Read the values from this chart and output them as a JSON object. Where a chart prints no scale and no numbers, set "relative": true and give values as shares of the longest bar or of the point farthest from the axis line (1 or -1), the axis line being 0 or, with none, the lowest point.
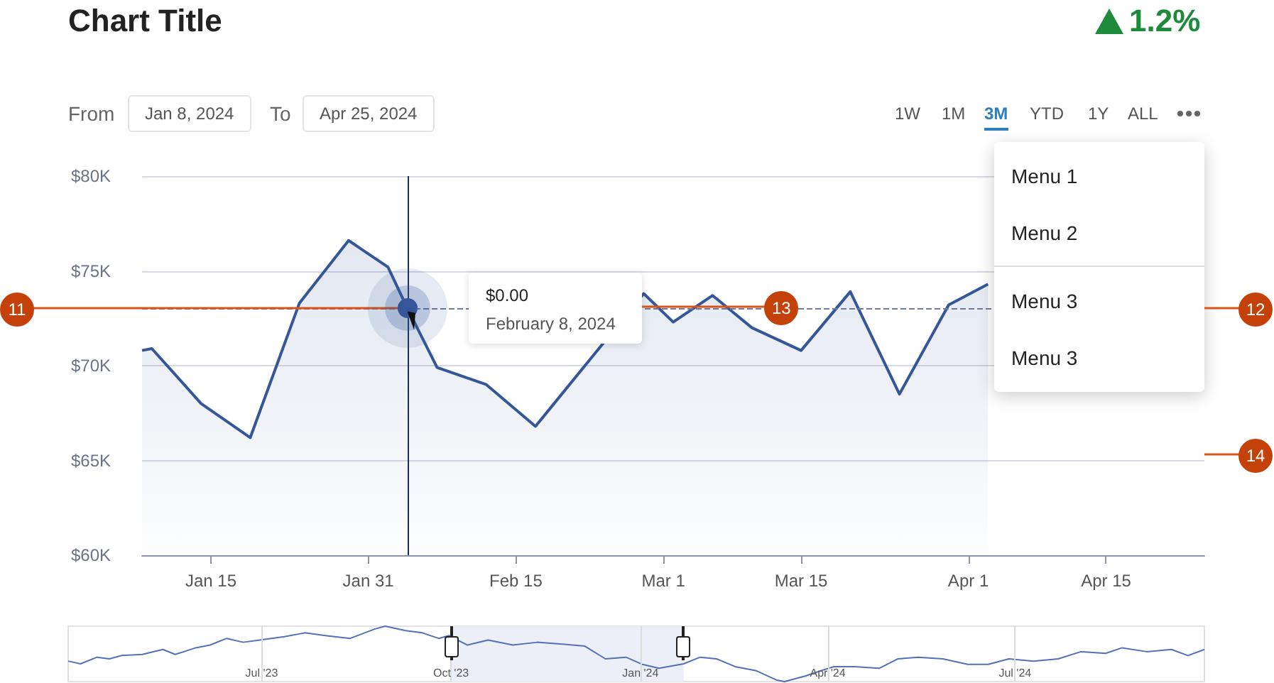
{
  "chart_data": [
    {
      "type": "area",
      "title": "Chart Title",
      "color": "#35579a",
      "marker": "none",
      "grid": "y",
      "x": [
        "2024-01-08",
        "2024-01-09",
        "2024-01-14",
        "2024-01-19",
        "2024-01-24",
        "2024-01-29",
        "2024-02-02",
        "2024-02-04",
        "2024-02-07",
        "2024-02-12",
        "2024-02-17",
        "2024-02-28",
        "2024-03-02",
        "2024-03-06",
        "2024-03-10",
        "2024-03-15",
        "2024-03-20",
        "2024-03-25",
        "2024-03-30",
        "2024-04-03"
      ],
      "values": [
        70800,
        70900,
        68000,
        66200,
        73300,
        76600,
        75200,
        73000,
        69900,
        69000,
        66800,
        73800,
        72300,
        73700,
        72000,
        70800,
        73900,
        68500,
        73200,
        74300
      ],
      "xlim": [
        "2024-01-08",
        "2024-04-25"
      ],
      "xticks": [
        {
          "value": "2024-01-15",
          "label": "Jan 15"
        },
        {
          "value": "2024-01-31",
          "label": "Jan 31"
        },
        {
          "value": "2024-02-15",
          "label": "Feb 15"
        },
        {
          "value": "2024-03-01",
          "label": "Mar 1"
        },
        {
          "value": "2024-03-15",
          "label": "Mar 15"
        },
        {
          "value": "2024-04-01",
          "label": "Apr 1"
        },
        {
          "value": "2024-04-15",
          "label": "Apr 15"
        }
      ],
      "ylim": [
        60000,
        80000
      ],
      "yticks": [
        {
          "value": 60000,
          "label": "$60K"
        },
        {
          "value": 65000,
          "label": "$65K"
        },
        {
          "value": 70000,
          "label": "$70K"
        },
        {
          "value": 75000,
          "label": "$75K"
        },
        {
          "value": 80000,
          "label": "$80K"
        }
      ],
      "ref_lines": [
        {
          "axis": "y",
          "value": 73000,
          "line_style": "dashed",
          "color": "#6a7ba3"
        },
        {
          "axis": "x",
          "value": "2024-02-04",
          "line_style": "solid",
          "color": "#1f2d55"
        }
      ],
      "annotations": [
        "From",
        "Jan 8, 2024",
        "To",
        "Apr 25, 2024",
        "1W",
        "1M",
        "3M",
        "YTD",
        "1Y",
        "ALL",
        "1.2%",
        "Menu 1",
        "Menu 2",
        "Menu 3",
        "Menu 3",
        "$0.00",
        "February 8, 2024",
        "11",
        "12",
        {
          "text": "13",
          "x": "2024-03-13",
          "y": 73000
        },
        "14"
      ]
    },
    {
      "type": "line",
      "relative": true,
      "color": "#5470b8",
      "grid": "x",
      "marker": "none",
      "tick_labels": "x",
      "x": [
        "2023-03-29",
        "2023-04-04",
        "2023-04-12",
        "2023-04-18",
        "2023-04-24",
        "2023-05-04",
        "2023-05-14",
        "2023-05-20",
        "2023-05-30",
        "2023-06-06",
        "2023-06-14",
        "2023-06-22",
        "2023-06-30",
        "2023-07-12",
        "2023-07-22",
        "2023-08-01",
        "2023-08-13",
        "2023-08-25",
        "2023-08-30",
        "2023-09-09",
        "2023-09-17",
        "2023-09-25",
        "2023-09-30",
        "2023-10-09",
        "2023-10-19",
        "2023-10-31",
        "2023-11-12",
        "2023-11-23",
        "2023-12-05",
        "2023-12-15",
        "2023-12-25",
        "2024-01-02",
        "2024-01-10",
        "2024-01-22",
        "2024-01-30",
        "2024-02-07",
        "2024-02-16",
        "2024-02-26",
        "2024-03-07",
        "2024-03-11",
        "2024-03-21",
        "2024-03-29",
        "2024-04-04",
        "2024-04-14",
        "2024-04-26",
        "2024-05-05",
        "2024-05-15",
        "2024-05-27",
        "2024-06-08",
        "2024-06-18",
        "2024-06-28",
        "2024-07-10",
        "2024-07-22",
        "2024-08-02",
        "2024-08-14",
        "2024-08-22",
        "2024-09-03",
        "2024-09-15",
        "2024-09-23",
        "2024-10-01"
      ],
      "values": [
        0.37,
        0.32,
        0.44,
        0.41,
        0.47,
        0.49,
        0.58,
        0.49,
        0.61,
        0.66,
        0.78,
        0.71,
        0.75,
        0.81,
        0.88,
        0.83,
        0.78,
        0.95,
        1,
        0.92,
        0.88,
        0.78,
        0.83,
        0.66,
        0.75,
        0.66,
        0.71,
        0.68,
        0.64,
        0.41,
        0.44,
        0.31,
        0.24,
        0.32,
        0.44,
        0.41,
        0.27,
        0.2,
        0.03,
        0,
        0.1,
        0.2,
        0.27,
        0.27,
        0.24,
        0.41,
        0.44,
        0.41,
        0.31,
        0.31,
        0.41,
        0.37,
        0.41,
        0.54,
        0.51,
        0.61,
        0.54,
        0.58,
        0.47,
        0.58
      ],
      "xlim": [
        "2023-03-29",
        "2024-10-01"
      ],
      "xticks": [
        {
          "value": "2023-07-01",
          "label": "Jul '23"
        },
        {
          "value": "2023-10-01",
          "label": "Oct '23"
        },
        {
          "value": "2024-01-01",
          "label": "Jan '24"
        },
        {
          "value": "2024-04-01",
          "label": "Apr '24"
        },
        {
          "value": "2024-07-01",
          "label": "Jul '24"
        }
      ],
      "bands": [
        {
          "axis": "x",
          "from": "2023-10-01",
          "to": "2024-01-22",
          "color": "#eceff8"
        }
      ]
    }
  ]
}
